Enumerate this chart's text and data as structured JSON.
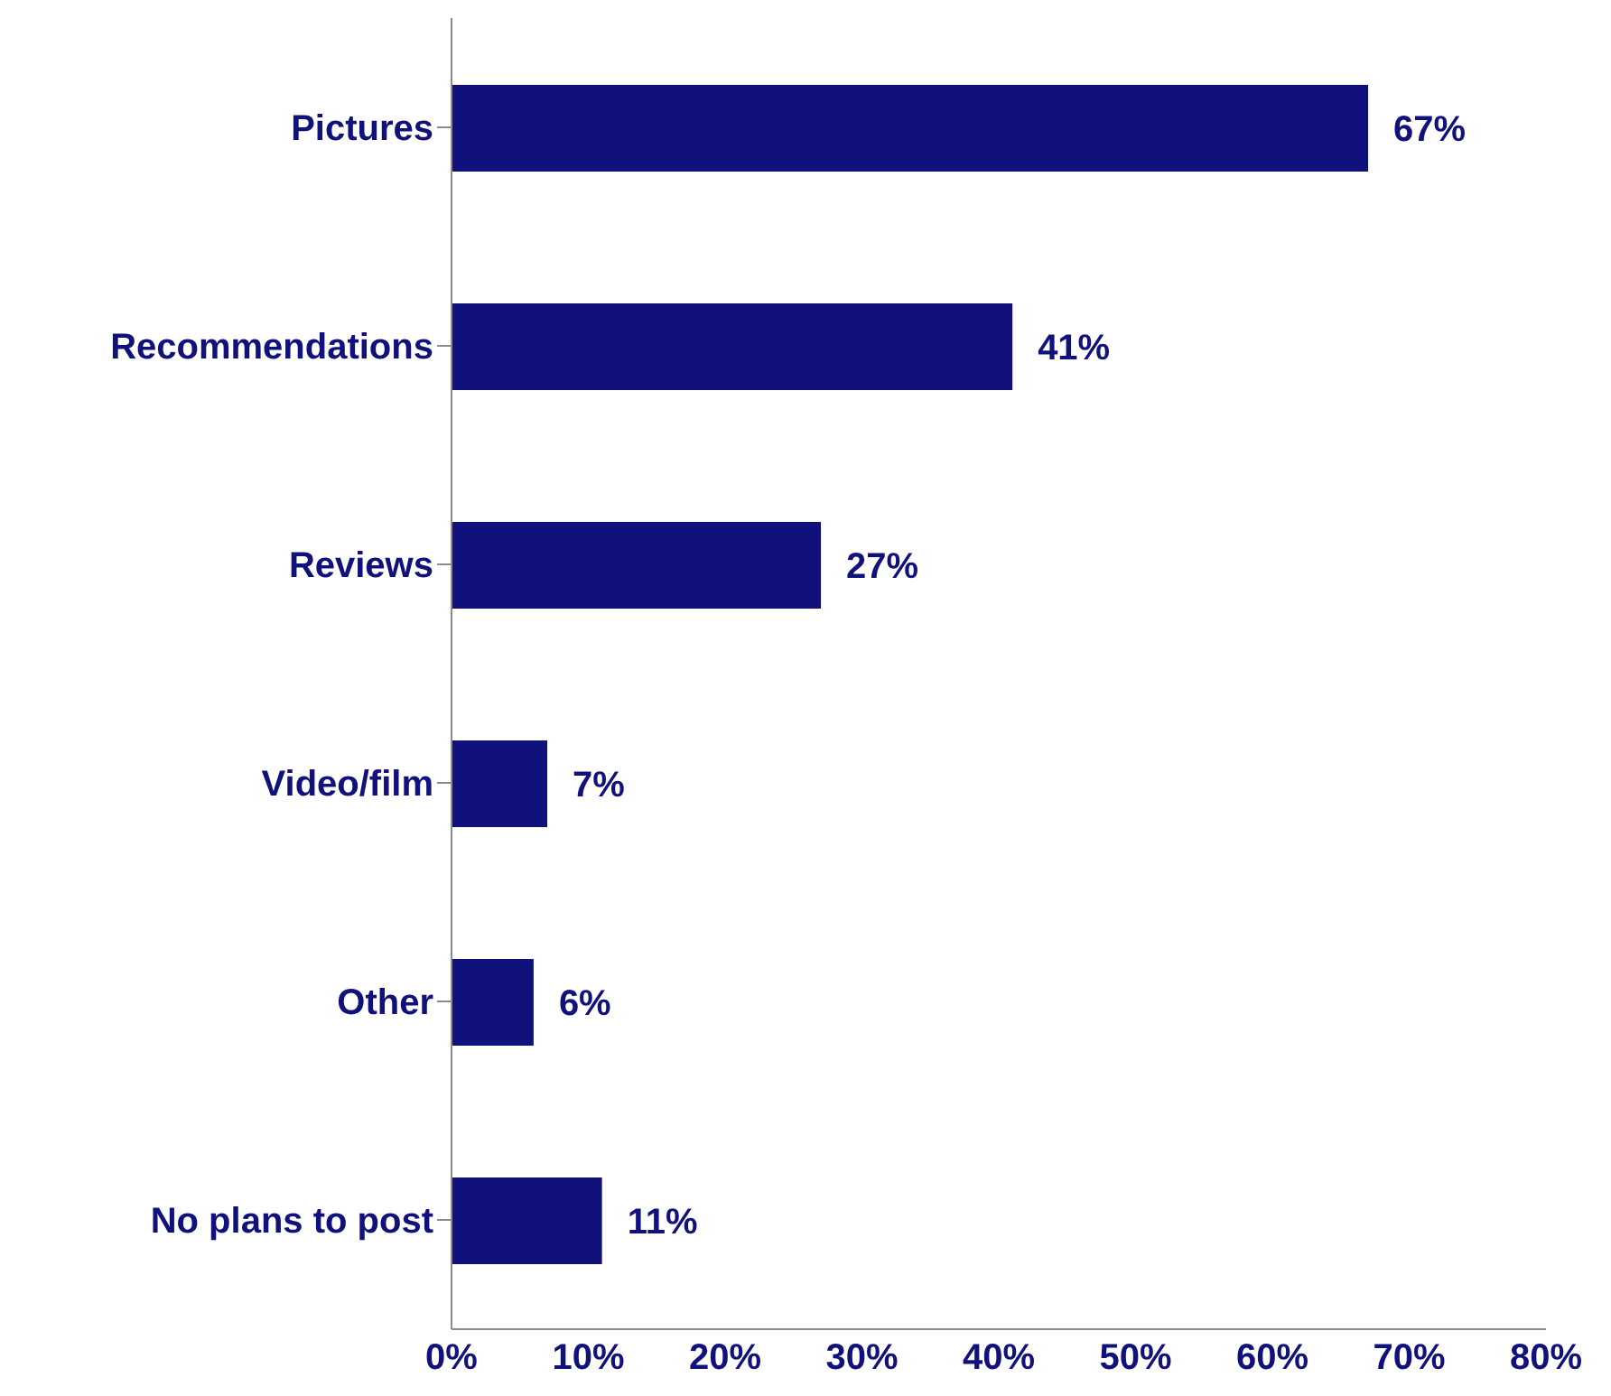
{
  "chart_data": {
    "type": "bar",
    "orientation": "horizontal",
    "categories": [
      "Pictures",
      "Recommendations",
      "Reviews",
      "Video/film",
      "Other",
      "No plans to post"
    ],
    "values": [
      67,
      41,
      27,
      7,
      6,
      11
    ],
    "value_labels": [
      "67%",
      "41%",
      "27%",
      "7%",
      "6%",
      "11%"
    ],
    "color": "#11117b",
    "xlim": [
      0,
      80
    ],
    "xticks": [
      {
        "value": 0,
        "label": "0%"
      },
      {
        "value": 10,
        "label": "10%"
      },
      {
        "value": 20,
        "label": "20%"
      },
      {
        "value": 30,
        "label": "30%"
      },
      {
        "value": 40,
        "label": "40%"
      },
      {
        "value": 50,
        "label": "50%"
      },
      {
        "value": 60,
        "label": "60%"
      },
      {
        "value": 70,
        "label": "70%"
      },
      {
        "value": 80,
        "label": "80%"
      }
    ],
    "grid": false,
    "legend": false
  }
}
